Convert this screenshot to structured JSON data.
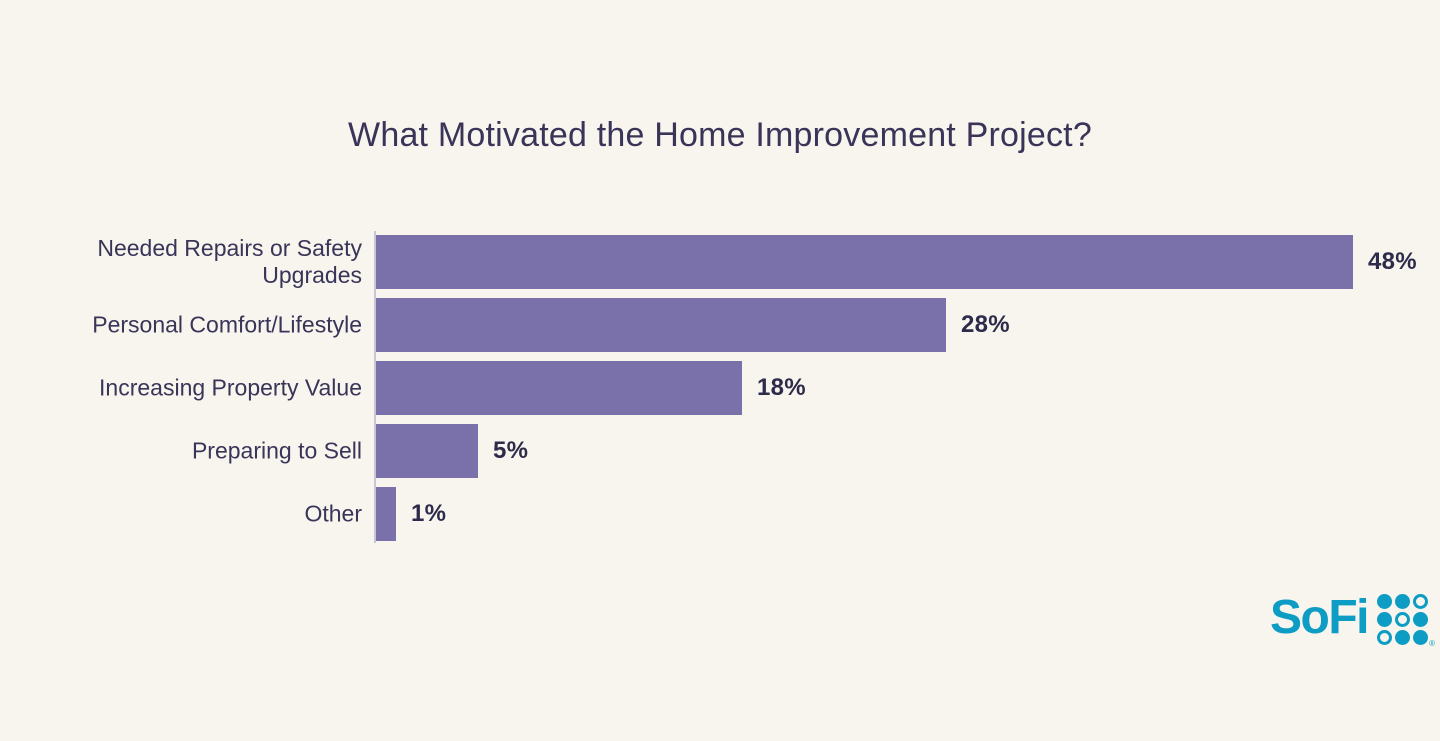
{
  "page": {
    "background_color": "#F7F5EE"
  },
  "chart_data": {
    "type": "bar",
    "orientation": "horizontal",
    "title": "What Motivated the Home Improvement Project?",
    "categories": [
      "Needed Repairs or Safety Upgrades",
      "Personal Comfort/Lifestyle",
      "Increasing Property Value",
      "Preparing to Sell",
      "Other"
    ],
    "values": [
      48,
      28,
      18,
      5,
      1
    ],
    "value_labels": [
      "48%",
      "28%",
      "18%",
      "5%",
      "1%"
    ],
    "xlabel": "",
    "ylabel": "",
    "xlim": [
      0,
      50
    ],
    "grid": false,
    "legend": false,
    "bar_color": "#7A70AA",
    "axis_line_color": "#C9C5D8",
    "category_label_color": "#3A3458",
    "value_label_color": "#2D2A4A",
    "title_color": "#3A3458"
  },
  "branding": {
    "wordmark": "SoFi",
    "registered_mark": "®",
    "logo_color": "#0D9DC4",
    "dots_pattern": [
      [
        "filled",
        "filled",
        "outline"
      ],
      [
        "filled",
        "outline",
        "filled"
      ],
      [
        "outline",
        "filled",
        "filled"
      ]
    ]
  }
}
